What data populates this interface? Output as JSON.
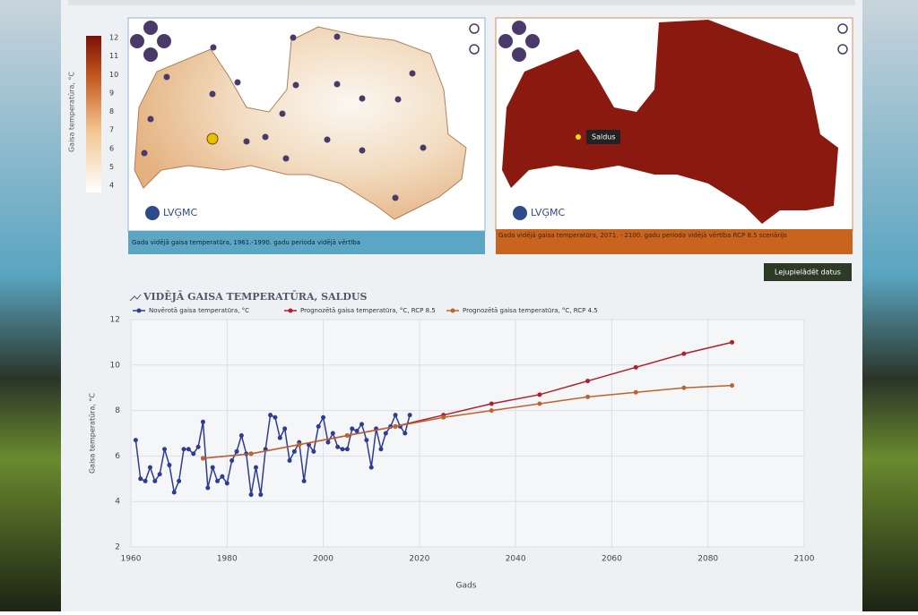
{
  "maps": {
    "legend": {
      "label": "Gaisa temperatūra, °C",
      "ticks": [
        4,
        5,
        6,
        7,
        8,
        9,
        10,
        11,
        12
      ]
    },
    "left": {
      "logo": "LVĢMC",
      "caption": "Gada vidējā gaisa temperatūra, 1961.-1990. gadu perioda vidējā vērtība"
    },
    "right": {
      "logo": "LVĢMC",
      "tooltip": "Saldus",
      "caption": "Gada vidējā gaisa temperatūra, 2071. - 2100. gadu perioda vidējā vērtība RCP 8.5 scenārijs"
    }
  },
  "download_button": "Lejupielādēt datus",
  "chart_data": {
    "type": "line",
    "title": "VIDĒJĀ GAISA TEMPERATŪRA, SALDUS",
    "x_label": "Gads",
    "y_label": "Gaisa temperatūra, °C",
    "xlim": [
      1960,
      2100
    ],
    "xticks": [
      1960,
      1980,
      2000,
      2020,
      2040,
      2060,
      2080,
      2100
    ],
    "ylim": [
      2,
      12
    ],
    "yticks": [
      2,
      4,
      6,
      8,
      10,
      12
    ],
    "grid": true,
    "series": [
      {
        "name": "Novērotā gaisa temperatūra, °C",
        "color": "#2e3d8f",
        "x": [
          1961,
          1962,
          1963,
          1964,
          1965,
          1966,
          1967,
          1968,
          1969,
          1970,
          1971,
          1972,
          1973,
          1974,
          1975,
          1976,
          1977,
          1978,
          1979,
          1980,
          1981,
          1982,
          1983,
          1984,
          1985,
          1986,
          1987,
          1988,
          1989,
          1990,
          1991,
          1992,
          1993,
          1994,
          1995,
          1996,
          1997,
          1998,
          1999,
          2000,
          2001,
          2002,
          2003,
          2004,
          2005,
          2006,
          2007,
          2008,
          2009,
          2010,
          2011,
          2012,
          2013,
          2014,
          2015,
          2016,
          2017,
          2018
        ],
        "values": [
          6.7,
          5.0,
          4.9,
          5.5,
          4.9,
          5.2,
          6.3,
          5.6,
          4.4,
          4.9,
          6.3,
          6.3,
          6.1,
          6.4,
          7.5,
          4.6,
          5.5,
          4.9,
          5.1,
          4.8,
          5.8,
          6.2,
          6.9,
          6.1,
          4.3,
          5.5,
          4.3,
          6.3,
          7.8,
          7.7,
          6.8,
          7.2,
          5.8,
          6.2,
          6.6,
          4.9,
          6.5,
          6.2,
          7.3,
          7.7,
          6.6,
          7.0,
          6.4,
          6.3,
          6.3,
          7.2,
          7.1,
          7.4,
          6.7,
          5.5,
          7.2,
          6.3,
          7.0,
          7.3,
          7.8,
          7.3,
          7.0,
          7.8
        ]
      },
      {
        "name": "Prognozētā gaisa temperatūra, °C, RCP 8.5",
        "color": "#b0202a",
        "x": [
          1975,
          1985,
          1995,
          2005,
          2015,
          2025,
          2035,
          2045,
          2055,
          2065,
          2075,
          2085
        ],
        "values": [
          5.9,
          6.1,
          6.5,
          6.9,
          7.3,
          7.8,
          8.3,
          8.7,
          9.3,
          9.9,
          10.5,
          11.0
        ]
      },
      {
        "name": "Prognozētā gaisa temperatūra, °C, RCP 4.5",
        "color": "#c0622e",
        "x": [
          1975,
          1985,
          1995,
          2005,
          2015,
          2025,
          2035,
          2045,
          2055,
          2065,
          2075,
          2085
        ],
        "values": [
          5.9,
          6.1,
          6.5,
          6.9,
          7.3,
          7.7,
          8.0,
          8.3,
          8.6,
          8.8,
          9.0,
          9.1
        ]
      }
    ]
  }
}
